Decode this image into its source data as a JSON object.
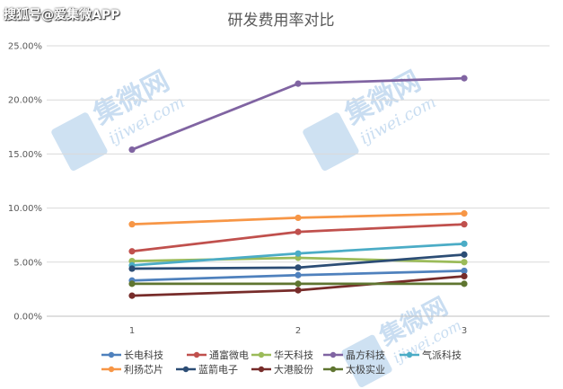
{
  "watermark": "搜狐号@爱集微APP",
  "colors": {
    "grid": "#d9d9d9",
    "axis": "#bfbfbf",
    "stamp": "#9dc3e6"
  },
  "chart_data": {
    "type": "line",
    "title": "研发费用率对比",
    "xlabel": "",
    "ylabel": "",
    "categories": [
      "1",
      "2",
      "3"
    ],
    "ylim": [
      0,
      25
    ],
    "yticks": [
      0,
      5,
      10,
      15,
      20,
      25
    ],
    "ytick_labels": [
      "0.00%",
      "5.00%",
      "10.00%",
      "15.00%",
      "20.00%",
      "25.00%"
    ],
    "grid": true,
    "legend_position": "bottom",
    "series": [
      {
        "name": "长电科技",
        "color": "#4f81bd",
        "values": [
          3.3,
          3.8,
          4.2
        ]
      },
      {
        "name": "通富微电",
        "color": "#c0504d",
        "values": [
          6.0,
          7.8,
          8.5
        ]
      },
      {
        "name": "华天科技",
        "color": "#9bbb59",
        "values": [
          5.1,
          5.4,
          5.0
        ]
      },
      {
        "name": "晶方科技",
        "color": "#8064a2",
        "values": [
          15.4,
          21.5,
          22.0
        ]
      },
      {
        "name": "气派科技",
        "color": "#4bacc6",
        "values": [
          4.7,
          5.8,
          6.7
        ]
      },
      {
        "name": "利扬芯片",
        "color": "#f79646",
        "values": [
          8.5,
          9.1,
          9.5
        ]
      },
      {
        "name": "蓝箭电子",
        "color": "#2c4d75",
        "values": [
          4.4,
          4.5,
          5.7
        ]
      },
      {
        "name": "大港股份",
        "color": "#772c2a",
        "values": [
          1.9,
          2.4,
          3.7
        ]
      },
      {
        "name": "太极实业",
        "color": "#5f7530",
        "values": [
          3.0,
          3.0,
          3.0
        ]
      }
    ]
  },
  "stamps": [
    {
      "brand": "集微网",
      "url": "ijiwei.com"
    },
    {
      "brand": "集微网",
      "url": "ijiwei.com"
    },
    {
      "brand": "集微网",
      "url": "ijiwei.com"
    }
  ]
}
